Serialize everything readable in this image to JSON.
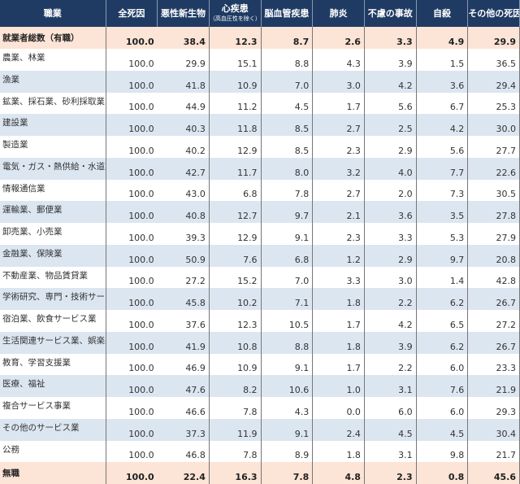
{
  "colors": {
    "header_bg": "#1f3b63",
    "alt_row": "#dce6f1",
    "total_row": "#fce4d6"
  },
  "headers": [
    "職業",
    "全死因",
    "悪性新生物",
    "心疾患",
    "脳血管疾患",
    "肺炎",
    "不慮の事故",
    "自殺",
    "その他の死因"
  ],
  "header_sub": "（高血圧性を除く）",
  "rows": [
    {
      "name": "就業者総数（有職）",
      "values": [
        "100.0",
        "38.4",
        "12.3",
        "8.7",
        "2.6",
        "3.3",
        "4.9",
        "29.9"
      ]
    },
    {
      "name": "農業、林業",
      "values": [
        "100.0",
        "29.9",
        "15.1",
        "8.8",
        "4.3",
        "3.9",
        "1.5",
        "36.5"
      ]
    },
    {
      "name": "漁業",
      "values": [
        "100.0",
        "41.8",
        "10.9",
        "7.0",
        "3.0",
        "4.2",
        "3.6",
        "29.4"
      ]
    },
    {
      "name": "鉱業、採石業、砂利採取業",
      "values": [
        "100.0",
        "44.9",
        "11.2",
        "4.5",
        "1.7",
        "5.6",
        "6.7",
        "25.3"
      ]
    },
    {
      "name": "建設業",
      "values": [
        "100.0",
        "40.3",
        "11.8",
        "8.5",
        "2.7",
        "2.5",
        "4.2",
        "30.0"
      ]
    },
    {
      "name": "製造業",
      "values": [
        "100.0",
        "40.2",
        "12.9",
        "8.5",
        "2.3",
        "2.9",
        "5.6",
        "27.7"
      ]
    },
    {
      "name": "電気・ガス・熱供給・水道業",
      "values": [
        "100.0",
        "42.7",
        "11.7",
        "8.0",
        "3.2",
        "4.0",
        "7.7",
        "22.6"
      ]
    },
    {
      "name": "情報通信業",
      "values": [
        "100.0",
        "43.0",
        "6.8",
        "7.8",
        "2.7",
        "2.0",
        "7.3",
        "30.5"
      ]
    },
    {
      "name": "運輸業、郵便業",
      "values": [
        "100.0",
        "40.8",
        "12.7",
        "9.7",
        "2.1",
        "3.6",
        "3.5",
        "27.8"
      ]
    },
    {
      "name": "卸売業、小売業",
      "values": [
        "100.0",
        "39.3",
        "12.9",
        "9.1",
        "2.3",
        "3.3",
        "5.3",
        "27.9"
      ]
    },
    {
      "name": "金融業、保険業",
      "values": [
        "100.0",
        "50.9",
        "7.6",
        "6.8",
        "1.2",
        "2.9",
        "9.7",
        "20.8"
      ]
    },
    {
      "name": "不動産業、物品賃貸業",
      "values": [
        "100.0",
        "27.2",
        "15.2",
        "7.0",
        "3.3",
        "3.0",
        "1.4",
        "42.8"
      ]
    },
    {
      "name": "学術研究、専門・技術サービ",
      "values": [
        "100.0",
        "45.8",
        "10.2",
        "7.1",
        "1.8",
        "2.2",
        "6.2",
        "26.7"
      ]
    },
    {
      "name": "宿泊業、飲食サービス業",
      "values": [
        "100.0",
        "37.6",
        "12.3",
        "10.5",
        "1.7",
        "4.2",
        "6.5",
        "27.2"
      ]
    },
    {
      "name": "生活関連サービス業、娯楽業",
      "values": [
        "100.0",
        "41.9",
        "10.8",
        "8.8",
        "1.8",
        "3.9",
        "6.2",
        "26.7"
      ]
    },
    {
      "name": "教育、学習支援業",
      "values": [
        "100.0",
        "46.9",
        "10.9",
        "9.1",
        "1.7",
        "2.2",
        "6.0",
        "23.3"
      ]
    },
    {
      "name": "医療、福祉",
      "values": [
        "100.0",
        "47.6",
        "8.2",
        "10.6",
        "1.0",
        "3.1",
        "7.6",
        "21.9"
      ]
    },
    {
      "name": "複合サービス事業",
      "values": [
        "100.0",
        "46.6",
        "7.8",
        "4.3",
        "0.0",
        "6.0",
        "6.0",
        "29.3"
      ]
    },
    {
      "name": "その他のサービス業",
      "values": [
        "100.0",
        "37.3",
        "11.9",
        "9.1",
        "2.4",
        "4.5",
        "4.5",
        "30.4"
      ]
    },
    {
      "name": "公務",
      "values": [
        "100.0",
        "46.8",
        "7.8",
        "8.9",
        "1.8",
        "3.1",
        "9.8",
        "21.7"
      ]
    },
    {
      "name": "無職",
      "values": [
        "100.0",
        "22.4",
        "16.3",
        "7.8",
        "4.8",
        "2.3",
        "0.8",
        "45.6"
      ]
    }
  ]
}
